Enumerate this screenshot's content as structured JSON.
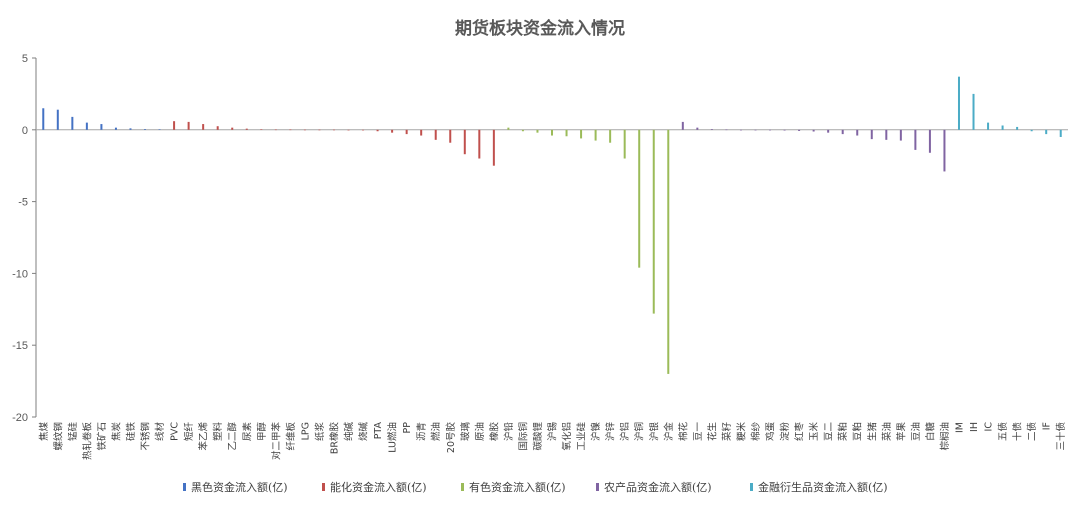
{
  "chart_data": {
    "type": "bar",
    "title": "期货板块资金流入情况",
    "ylim": [
      -20,
      5
    ],
    "yticks": [
      5,
      0,
      -5,
      -10,
      -15,
      -20
    ],
    "grid": false,
    "legend_position": "bottom",
    "categories": [
      "焦煤",
      "螺纹钢",
      "锰硅",
      "热轧卷板",
      "铁矿石",
      "焦炭",
      "硅铁",
      "不锈钢",
      "线材",
      "PVC",
      "短纤",
      "苯乙烯",
      "塑料",
      "乙二醇",
      "尿素",
      "甲醇",
      "对二甲苯",
      "纤维板",
      "LPG",
      "纸浆",
      "BR橡胶",
      "纯碱",
      "烧碱",
      "PTA",
      "LU燃油",
      "PP",
      "沥青",
      "燃油",
      "20号胶",
      "玻璃",
      "原油",
      "橡胶",
      "沪铅",
      "国际铜",
      "碳酸锂",
      "沪锡",
      "氧化铝",
      "工业硅",
      "沪镍",
      "沪锌",
      "沪铝",
      "沪铜",
      "沪银",
      "沪金",
      "棉花",
      "豆一",
      "花生",
      "菜籽",
      "粳米",
      "棉纱",
      "鸡蛋",
      "淀粉",
      "红枣",
      "玉米",
      "豆二",
      "菜粕",
      "豆粕",
      "生猪",
      "菜油",
      "苹果",
      "豆油",
      "白糖",
      "棕榈油",
      "IM",
      "IH",
      "IC",
      "五债",
      "十债",
      "二债",
      "IF",
      "三十债"
    ],
    "values": [
      1.5,
      1.4,
      0.9,
      0.5,
      0.4,
      0.15,
      0.1,
      0.05,
      0.03,
      0.6,
      0.55,
      0.4,
      0.25,
      0.15,
      0.08,
      0.03,
      0.02,
      0.02,
      0.01,
      0.01,
      0.01,
      0.0,
      -0.02,
      -0.1,
      -0.2,
      -0.3,
      -0.4,
      -0.7,
      -0.9,
      -1.7,
      -2.0,
      -2.5,
      0.15,
      -0.1,
      -0.2,
      -0.4,
      -0.45,
      -0.6,
      -0.75,
      -0.9,
      -2.0,
      -9.6,
      -12.8,
      -17.0,
      0.55,
      0.15,
      0.05,
      0.02,
      0.0,
      0.0,
      -0.02,
      -0.05,
      -0.08,
      -0.12,
      -0.2,
      -0.3,
      -0.4,
      -0.65,
      -0.7,
      -0.75,
      -1.4,
      -1.6,
      -2.9,
      3.7,
      2.5,
      0.5,
      0.3,
      0.2,
      -0.1,
      -0.3,
      -0.5
    ],
    "groups": [
      0,
      0,
      0,
      0,
      0,
      0,
      0,
      0,
      0,
      1,
      1,
      1,
      1,
      1,
      1,
      1,
      1,
      1,
      1,
      1,
      1,
      1,
      1,
      1,
      1,
      1,
      1,
      1,
      1,
      1,
      1,
      1,
      2,
      2,
      2,
      2,
      2,
      2,
      2,
      2,
      2,
      2,
      2,
      2,
      3,
      3,
      3,
      3,
      3,
      3,
      3,
      3,
      3,
      3,
      3,
      3,
      3,
      3,
      3,
      3,
      3,
      3,
      3,
      4,
      4,
      4,
      4,
      4,
      4,
      4,
      4
    ],
    "series": [
      {
        "name": "黑色资金流入额(亿)",
        "color": "#4472C4"
      },
      {
        "name": "能化资金流入额(亿)",
        "color": "#C0504D"
      },
      {
        "name": "有色资金流入额(亿)",
        "color": "#9BBB59"
      },
      {
        "name": "农产品资金流入额(亿)",
        "color": "#8064A2"
      },
      {
        "name": "金融衍生品资金流入额(亿)",
        "color": "#4BACC6"
      }
    ]
  }
}
